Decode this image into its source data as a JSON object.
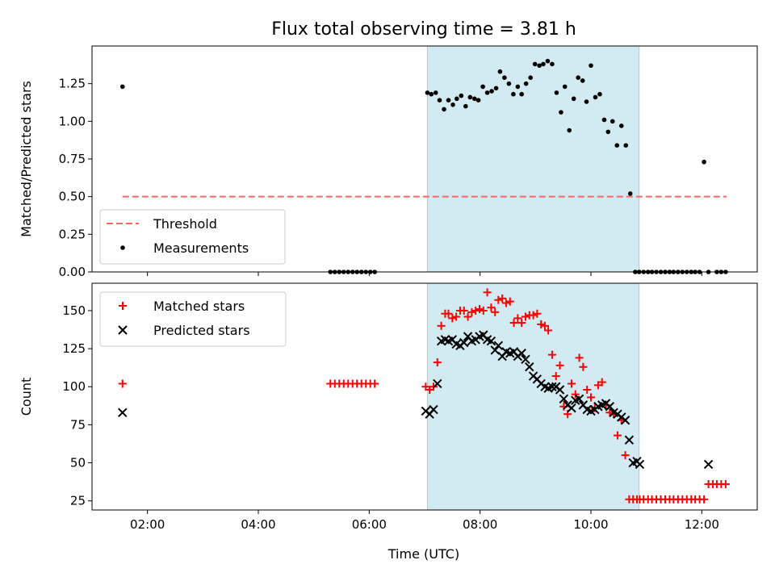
{
  "figure": {
    "title": "Flux total observing time = 3.81 h",
    "xlabel": "Time (UTC)",
    "x_ticks": [
      "02:00",
      "04:00",
      "06:00",
      "08:00",
      "10:00",
      "12:00"
    ]
  },
  "chart_data": [
    {
      "type": "scatter",
      "title": "Flux total observing time = 3.81 h",
      "ylabel": "Matched/Predicted stars",
      "xlabel": "",
      "x_unit": "hours UTC",
      "xlim": [
        1.0,
        13.0
      ],
      "ylim": [
        0.0,
        1.5
      ],
      "y_ticks": [
        "0.00",
        "0.25",
        "0.50",
        "0.75",
        "1.00",
        "1.25"
      ],
      "shaded_interval": {
        "x": [
          7.05,
          10.87
        ],
        "color": "#add8e6"
      },
      "legend_position": "lower-left",
      "series": [
        {
          "name": "Threshold",
          "kind": "dashed-line",
          "color": "#ff6666",
          "x": [
            1.55,
            12.45
          ],
          "y": [
            0.5,
            0.5
          ]
        },
        {
          "name": "Measurements",
          "kind": "point",
          "color": "#000000",
          "x": [
            1.55,
            5.3,
            5.38,
            5.46,
            5.54,
            5.62,
            5.7,
            5.78,
            5.86,
            5.94,
            6.02,
            6.1,
            7.05,
            7.12,
            7.2,
            7.27,
            7.35,
            7.43,
            7.51,
            7.58,
            7.66,
            7.74,
            7.82,
            7.9,
            7.97,
            8.05,
            8.13,
            8.21,
            8.29,
            8.36,
            8.44,
            8.52,
            8.6,
            8.68,
            8.75,
            8.83,
            8.91,
            8.99,
            9.07,
            9.14,
            9.22,
            9.3,
            9.38,
            9.46,
            9.53,
            9.61,
            9.69,
            9.77,
            9.85,
            9.92,
            10.0,
            10.08,
            10.16,
            10.24,
            10.31,
            10.39,
            10.47,
            10.55,
            10.63,
            10.71,
            10.8,
            10.87,
            10.95,
            11.03,
            11.1,
            11.18,
            11.26,
            11.34,
            11.42,
            11.49,
            11.57,
            11.65,
            11.73,
            11.81,
            11.88,
            11.96,
            12.04,
            12.12,
            12.27,
            12.35,
            12.43
          ],
          "y": [
            1.23,
            0.0,
            0.0,
            0.0,
            0.0,
            0.0,
            0.0,
            0.0,
            0.0,
            0.0,
            0.0,
            0.0,
            1.19,
            1.18,
            1.19,
            1.14,
            1.08,
            1.14,
            1.11,
            1.15,
            1.17,
            1.1,
            1.16,
            1.15,
            1.14,
            1.23,
            1.19,
            1.2,
            1.22,
            1.33,
            1.29,
            1.25,
            1.18,
            1.23,
            1.18,
            1.25,
            1.29,
            1.38,
            1.37,
            1.38,
            1.4,
            1.38,
            1.19,
            1.06,
            1.23,
            0.94,
            1.15,
            1.29,
            1.27,
            1.13,
            1.37,
            1.16,
            1.18,
            1.01,
            0.93,
            1.0,
            0.84,
            0.97,
            0.84,
            0.52,
            0.0,
            0.0,
            0.0,
            0.0,
            0.0,
            0.0,
            0.0,
            0.0,
            0.0,
            0.0,
            0.0,
            0.0,
            0.0,
            0.0,
            0.0,
            0.0,
            0.73,
            0.0,
            0.0,
            0.0,
            0.0
          ]
        }
      ]
    },
    {
      "type": "scatter",
      "title": "",
      "ylabel": "Count",
      "xlabel": "Time (UTC)",
      "x_unit": "hours UTC",
      "xlim": [
        1.0,
        13.0
      ],
      "ylim": [
        19,
        168
      ],
      "y_ticks": [
        "25",
        "50",
        "75",
        "100",
        "125",
        "150"
      ],
      "shaded_interval": {
        "x": [
          7.05,
          10.87
        ],
        "color": "#add8e6"
      },
      "legend_position": "upper-left",
      "series": [
        {
          "name": "Matched stars",
          "kind": "plus",
          "color": "#ff0000",
          "x": [
            1.55,
            5.3,
            5.38,
            5.46,
            5.54,
            5.62,
            5.7,
            5.78,
            5.86,
            5.94,
            6.02,
            6.1,
            7.02,
            7.09,
            7.16,
            7.23,
            7.3,
            7.37,
            7.43,
            7.5,
            7.57,
            7.64,
            7.71,
            7.78,
            7.85,
            7.92,
            7.99,
            8.06,
            8.13,
            8.2,
            8.27,
            8.33,
            8.4,
            8.47,
            8.54,
            8.61,
            8.68,
            8.75,
            8.82,
            8.89,
            8.96,
            9.03,
            9.1,
            9.17,
            9.23,
            9.3,
            9.37,
            9.44,
            9.51,
            9.58,
            9.65,
            9.72,
            9.79,
            9.86,
            9.93,
            10.0,
            10.07,
            10.13,
            10.2,
            10.27,
            10.34,
            10.41,
            10.48,
            10.55,
            10.62,
            10.69,
            10.76,
            10.83,
            10.88,
            10.95,
            11.03,
            11.1,
            11.18,
            11.26,
            11.34,
            11.42,
            11.49,
            11.57,
            11.65,
            11.73,
            11.81,
            11.88,
            11.96,
            12.04,
            12.12,
            12.2,
            12.27,
            12.35,
            12.43
          ],
          "y": [
            102,
            102,
            102,
            102,
            102,
            102,
            102,
            102,
            102,
            102,
            102,
            102,
            100,
            98,
            100,
            116,
            140,
            148,
            148,
            145,
            146,
            150,
            150,
            146,
            149,
            150,
            151,
            150,
            162,
            152,
            149,
            157,
            158,
            155,
            156,
            142,
            145,
            142,
            146,
            147,
            147,
            148,
            141,
            140,
            137,
            121,
            107,
            114,
            87,
            82,
            102,
            95,
            119,
            113,
            98,
            93,
            86,
            101,
            103,
            88,
            83,
            82,
            68,
            78,
            55,
            26,
            26,
            26,
            26,
            26,
            26,
            26,
            26,
            26,
            26,
            26,
            26,
            26,
            26,
            26,
            26,
            26,
            26,
            26,
            36,
            36,
            36,
            36,
            36
          ]
        },
        {
          "name": "Predicted stars",
          "kind": "x",
          "color": "#000000",
          "x": [
            1.55,
            7.02,
            7.09,
            7.16,
            7.23,
            7.3,
            7.37,
            7.43,
            7.5,
            7.57,
            7.64,
            7.71,
            7.78,
            7.85,
            7.92,
            7.99,
            8.06,
            8.13,
            8.2,
            8.27,
            8.33,
            8.4,
            8.47,
            8.54,
            8.61,
            8.68,
            8.75,
            8.82,
            8.89,
            8.96,
            9.03,
            9.1,
            9.17,
            9.23,
            9.3,
            9.37,
            9.44,
            9.51,
            9.58,
            9.65,
            9.72,
            9.79,
            9.86,
            9.93,
            10.0,
            10.07,
            10.13,
            10.2,
            10.27,
            10.34,
            10.41,
            10.48,
            10.55,
            10.62,
            10.69,
            10.76,
            10.83,
            10.88,
            12.12
          ],
          "y": [
            83,
            84,
            82,
            85,
            102,
            130,
            131,
            130,
            131,
            128,
            127,
            129,
            133,
            130,
            131,
            133,
            134,
            131,
            130,
            124,
            127,
            120,
            123,
            122,
            123,
            120,
            122,
            118,
            113,
            107,
            105,
            102,
            100,
            99,
            100,
            100,
            98,
            92,
            88,
            86,
            91,
            92,
            88,
            85,
            84,
            85,
            87,
            88,
            89,
            87,
            83,
            82,
            80,
            78,
            65,
            50,
            51,
            49,
            49
          ]
        }
      ]
    }
  ]
}
